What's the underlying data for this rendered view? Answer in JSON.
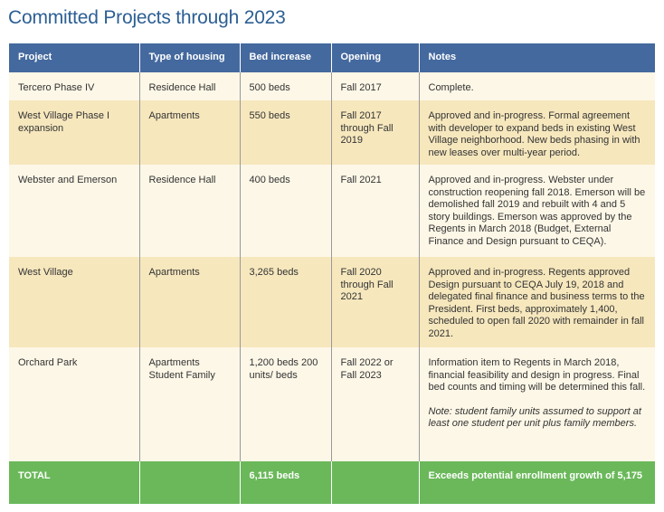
{
  "title": "Committed Projects through 2023",
  "headers": [
    "Project",
    "Type of housing",
    "Bed increase",
    "Opening",
    "Notes"
  ],
  "rows": [
    {
      "project": "Tercero Phase IV",
      "type": "Residence Hall",
      "beds": "500 beds",
      "opening": "Fall 2017",
      "notes": "Complete."
    },
    {
      "project": "West Village Phase I expansion",
      "type": "Apartments",
      "beds": "550 beds",
      "opening": "Fall 2017 through Fall 2019",
      "notes": "Approved and in-progress. Formal agreement with developer to expand beds in existing West Village neighborhood. New beds phasing in with new leases over multi-year period."
    },
    {
      "project": "Webster and Emerson",
      "type": "Residence Hall",
      "beds": "400 beds",
      "opening": "Fall 2021",
      "notes": "Approved and in-progress. Webster under construction reopening fall 2018. Emerson will be demolished fall 2019 and rebuilt with 4 and 5 story buildings. Emerson was approved by the Regents in March 2018 (Budget, External Finance and Design pursuant to CEQA)."
    },
    {
      "project": "West Village",
      "type": "Apartments",
      "beds": "3,265 beds",
      "opening": "Fall 2020 through Fall 2021",
      "notes": "Approved and in-progress. Regents approved Design pursuant to CEQA July 19, 2018 and delegated final finance and business terms to the President. First beds, approximately 1,400, scheduled to open fall 2020 with remainder in fall 2021."
    },
    {
      "project": "Orchard Park",
      "type": "Apartments Student Family",
      "beds": "1,200 beds 200 units/ beds",
      "opening": "Fall 2022 or Fall 2023",
      "notes": "Information item to Regents in March 2018, financial feasibility and design in progress. Final bed counts and timing will be determined this fall.",
      "note_italic": "Note: student family units assumed to support at least one student per unit plus family members."
    }
  ],
  "total": {
    "project": "TOTAL",
    "type": "",
    "beds": "6,115 beds",
    "opening": "",
    "notes": "Exceeds potential enrollment growth of 5,175"
  }
}
